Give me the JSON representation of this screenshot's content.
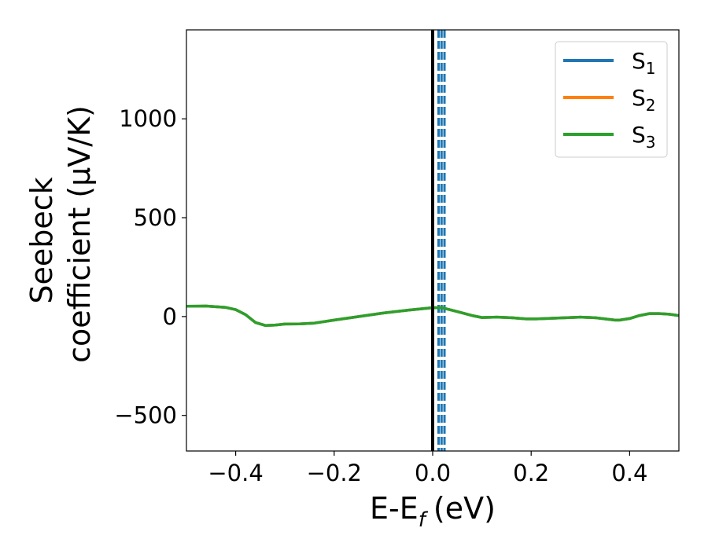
{
  "chart_data": {
    "type": "line",
    "xlabel": "E-E",
    "xlabel_sub": "f",
    "xlabel_unit": "(eV)",
    "ylabel_line1": "Seebeck",
    "ylabel_line2": "coefficient  (μV/K)",
    "xlim": [
      -0.5,
      0.5
    ],
    "ylim": [
      -680,
      1450
    ],
    "xticks": [
      -0.4,
      -0.2,
      0.0,
      0.2,
      0.4
    ],
    "xtick_labels": [
      "−0.4",
      "−0.2",
      "0.0",
      "0.2",
      "0.4"
    ],
    "yticks": [
      -500,
      0,
      500,
      1000
    ],
    "ytick_labels": [
      "−500",
      "0",
      "500",
      "1000"
    ],
    "grid": false,
    "legend_position": "top-right",
    "vertical_line": {
      "x": 0.0,
      "color": "#000000"
    },
    "dashed_lines": {
      "x": [
        0.012,
        0.018,
        0.024
      ],
      "color": "#1f77b4"
    },
    "series": [
      {
        "name": "S",
        "sub": "1",
        "color": "#1f77b4",
        "x": [
          -0.5,
          -0.46,
          -0.42,
          -0.4,
          -0.38,
          -0.36,
          -0.34,
          -0.32,
          -0.3,
          -0.27,
          -0.24,
          -0.2,
          -0.15,
          -0.1,
          -0.05,
          0.0,
          0.02,
          0.05,
          0.08,
          0.1,
          0.13,
          0.16,
          0.19,
          0.21,
          0.24,
          0.27,
          0.3,
          0.33,
          0.35,
          0.37,
          0.38,
          0.4,
          0.42,
          0.44,
          0.46,
          0.48,
          0.5
        ],
        "y": [
          52,
          53,
          46,
          35,
          10,
          -30,
          -45,
          -43,
          -38,
          -37,
          -33,
          -18,
          0,
          18,
          32,
          45,
          44,
          25,
          5,
          -5,
          -3,
          -6,
          -12,
          -12,
          -9,
          -6,
          -3,
          -6,
          -12,
          -18,
          -18,
          -10,
          5,
          15,
          15,
          12,
          5
        ]
      },
      {
        "name": "S",
        "sub": "2",
        "color": "#ff7f0e",
        "x": [
          -0.5,
          -0.46,
          -0.42,
          -0.4,
          -0.38,
          -0.36,
          -0.34,
          -0.32,
          -0.3,
          -0.27,
          -0.24,
          -0.2,
          -0.15,
          -0.1,
          -0.05,
          0.0,
          0.02,
          0.05,
          0.08,
          0.1,
          0.13,
          0.16,
          0.19,
          0.21,
          0.24,
          0.27,
          0.3,
          0.33,
          0.35,
          0.37,
          0.38,
          0.4,
          0.42,
          0.44,
          0.46,
          0.48,
          0.5
        ],
        "y": [
          52,
          53,
          46,
          35,
          10,
          -30,
          -45,
          -43,
          -38,
          -37,
          -33,
          -18,
          0,
          18,
          32,
          45,
          44,
          25,
          5,
          -5,
          -3,
          -6,
          -12,
          -12,
          -9,
          -6,
          -3,
          -6,
          -12,
          -18,
          -18,
          -10,
          5,
          15,
          15,
          12,
          5
        ]
      },
      {
        "name": "S",
        "sub": "3",
        "color": "#2ca02c",
        "x": [
          -0.5,
          -0.46,
          -0.42,
          -0.4,
          -0.38,
          -0.36,
          -0.34,
          -0.32,
          -0.3,
          -0.27,
          -0.24,
          -0.2,
          -0.15,
          -0.1,
          -0.05,
          0.0,
          0.02,
          0.05,
          0.08,
          0.1,
          0.13,
          0.16,
          0.19,
          0.21,
          0.24,
          0.27,
          0.3,
          0.33,
          0.35,
          0.37,
          0.38,
          0.4,
          0.42,
          0.44,
          0.46,
          0.48,
          0.5
        ],
        "y": [
          52,
          53,
          46,
          35,
          10,
          -30,
          -45,
          -43,
          -38,
          -37,
          -33,
          -18,
          0,
          18,
          32,
          45,
          44,
          25,
          5,
          -5,
          -3,
          -6,
          -12,
          -12,
          -9,
          -6,
          -3,
          -6,
          -12,
          -18,
          -18,
          -10,
          5,
          15,
          15,
          12,
          5
        ]
      }
    ]
  }
}
